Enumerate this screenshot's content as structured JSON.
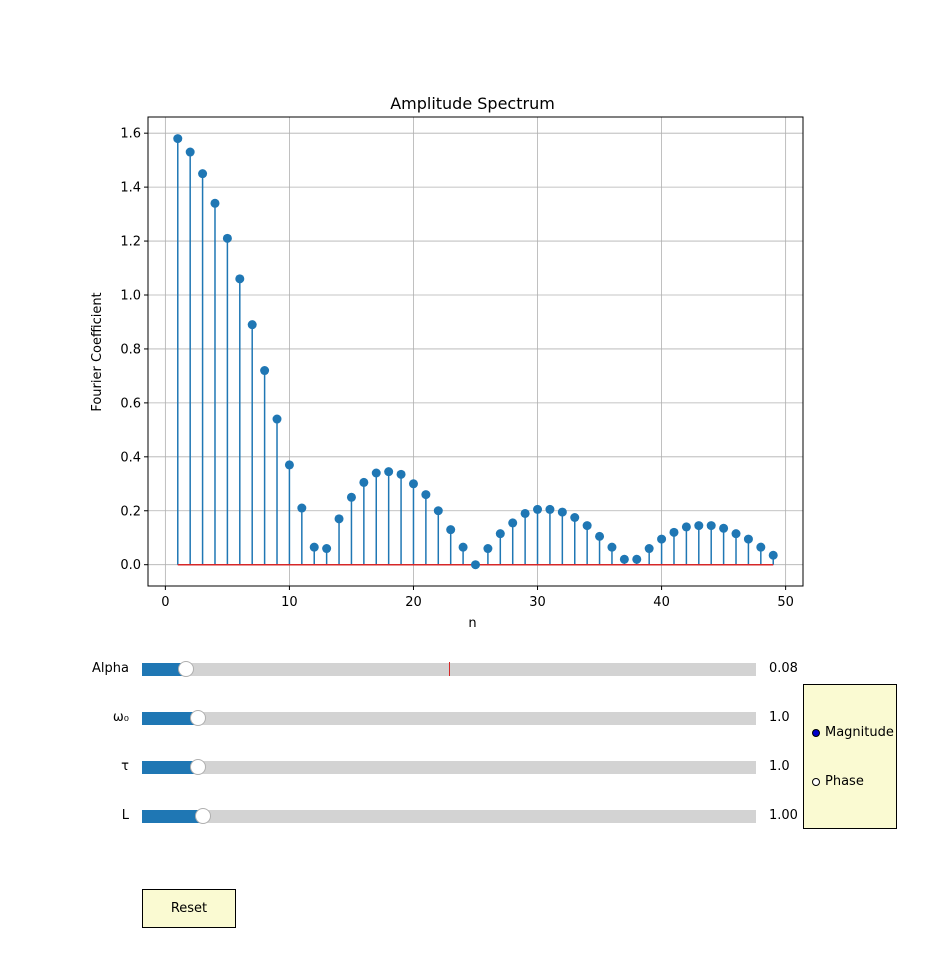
{
  "chart_data": {
    "type": "stem",
    "title": "Amplitude Spectrum",
    "xlabel": "n",
    "ylabel": "Fourier Coefficient",
    "xlim": [
      -1.4,
      51.4
    ],
    "ylim": [
      -0.079,
      1.66
    ],
    "xticks": [
      0,
      10,
      20,
      30,
      40,
      50
    ],
    "yticks": [
      0.0,
      0.2,
      0.4,
      0.6,
      0.8,
      1.0,
      1.2,
      1.4,
      1.6
    ],
    "ytick_labels": [
      "0.0",
      "0.2",
      "0.4",
      "0.6",
      "0.8",
      "1.0",
      "1.2",
      "1.4",
      "1.6"
    ],
    "grid": true,
    "marker_color": "#1f77b4",
    "baseline_color": "#d62728",
    "x": [
      1,
      2,
      3,
      4,
      5,
      6,
      7,
      8,
      9,
      10,
      11,
      12,
      13,
      14,
      15,
      16,
      17,
      18,
      19,
      20,
      21,
      22,
      23,
      24,
      25,
      26,
      27,
      28,
      29,
      30,
      31,
      32,
      33,
      34,
      35,
      36,
      37,
      38,
      39,
      40,
      41,
      42,
      43,
      44,
      45,
      46,
      47,
      48,
      49
    ],
    "values": [
      1.58,
      1.53,
      1.45,
      1.34,
      1.21,
      1.06,
      0.89,
      0.72,
      0.54,
      0.37,
      0.21,
      0.065,
      0.06,
      0.17,
      0.25,
      0.305,
      0.34,
      0.345,
      0.335,
      0.3,
      0.26,
      0.2,
      0.13,
      0.065,
      0.0,
      0.06,
      0.115,
      0.155,
      0.19,
      0.205,
      0.205,
      0.195,
      0.175,
      0.145,
      0.105,
      0.065,
      0.02,
      0.02,
      0.06,
      0.095,
      0.12,
      0.14,
      0.145,
      0.145,
      0.135,
      0.115,
      0.095,
      0.065,
      0.035
    ]
  },
  "controls": {
    "sliders": [
      {
        "label": "Alpha",
        "value_text": "0.08",
        "fraction": 0.072,
        "valinit_fraction": 0.5
      },
      {
        "label": "ω₀",
        "value_text": "1.0",
        "fraction": 0.092
      },
      {
        "label": "τ",
        "value_text": "1.0",
        "fraction": 0.092
      },
      {
        "label": "L",
        "value_text": "1.00",
        "fraction": 0.1
      }
    ],
    "radio": {
      "options": [
        "Magnitude",
        "Phase"
      ],
      "selected": "Magnitude"
    },
    "reset_label": "Reset"
  }
}
